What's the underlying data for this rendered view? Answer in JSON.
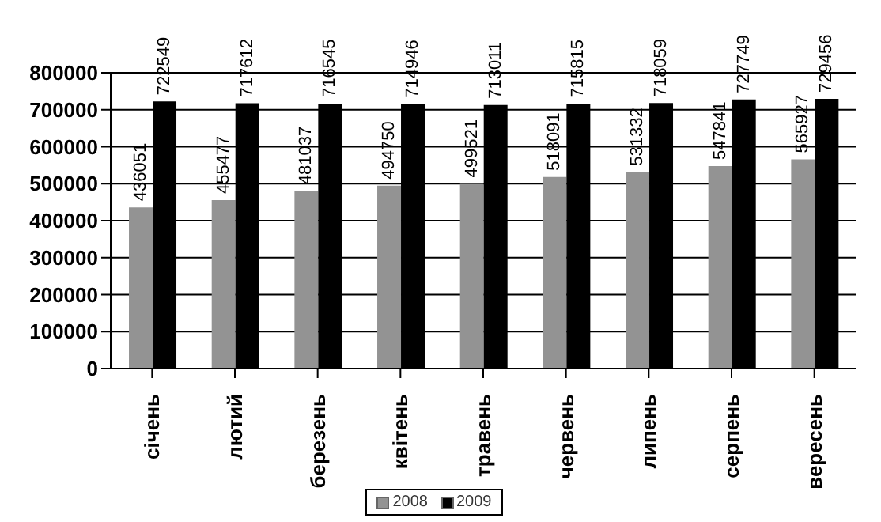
{
  "chart_data": {
    "type": "bar",
    "categories": [
      "січень",
      "лютий",
      "березень",
      "квітень",
      "травень",
      "червень",
      "липень",
      "серпень",
      "вересень"
    ],
    "series": [
      {
        "name": "2008",
        "color": "#939393",
        "values": [
          436051,
          455477,
          481037,
          494750,
          499521,
          518091,
          531332,
          547841,
          565927
        ]
      },
      {
        "name": "2009",
        "color": "#000000",
        "values": [
          722549,
          717612,
          716545,
          714946,
          713011,
          715815,
          718059,
          727749,
          729456
        ]
      }
    ],
    "ylim": [
      0,
      800000
    ],
    "yticks": [
      0,
      100000,
      200000,
      300000,
      400000,
      500000,
      600000,
      700000,
      800000
    ],
    "grid": "y",
    "legend": "bottom",
    "data_labels": true
  }
}
